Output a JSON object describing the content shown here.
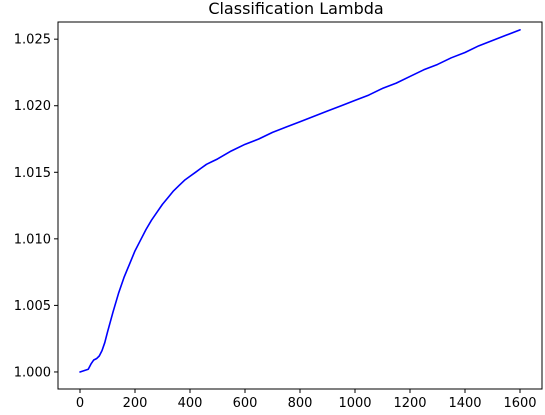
{
  "chart_data": {
    "type": "line",
    "title": "Classification Lambda",
    "xlabel": "",
    "ylabel": "",
    "xlim": [
      -80,
      1680
    ],
    "ylim": [
      0.99872,
      1.02629
    ],
    "xticks": [
      0,
      200,
      400,
      600,
      800,
      1000,
      1200,
      1400,
      1600
    ],
    "yticks": [
      1.0,
      1.005,
      1.01,
      1.015,
      1.02,
      1.025
    ],
    "xtick_labels": [
      "0",
      "200",
      "400",
      "600",
      "800",
      "1000",
      "1200",
      "1400",
      "1600"
    ],
    "ytick_labels": [
      "1.000",
      "1.005",
      "1.010",
      "1.015",
      "1.020",
      "1.025"
    ],
    "grid": false,
    "legend": null,
    "series": [
      {
        "color": "#0000ff",
        "x": [
          0,
          30,
          40,
          50,
          60,
          70,
          80,
          90,
          100,
          120,
          140,
          160,
          180,
          200,
          220,
          240,
          260,
          280,
          300,
          320,
          340,
          360,
          380,
          400,
          420,
          440,
          460,
          480,
          500,
          550,
          600,
          650,
          700,
          750,
          800,
          850,
          900,
          950,
          1000,
          1050,
          1100,
          1150,
          1200,
          1250,
          1300,
          1350,
          1400,
          1450,
          1500,
          1550,
          1600
        ],
        "y": [
          1.0,
          1.0002,
          1.0006,
          1.0009,
          1.001,
          1.0012,
          1.0016,
          1.0022,
          1.003,
          1.0045,
          1.0059,
          1.0071,
          1.0081,
          1.0091,
          1.0099,
          1.0107,
          1.0114,
          1.012,
          1.0126,
          1.0131,
          1.0136,
          1.014,
          1.0144,
          1.0147,
          1.015,
          1.0153,
          1.0156,
          1.0158,
          1.016,
          1.0166,
          1.0171,
          1.0175,
          1.018,
          1.0184,
          1.0188,
          1.0192,
          1.0196,
          1.02,
          1.0204,
          1.0208,
          1.0213,
          1.0217,
          1.0222,
          1.0227,
          1.0231,
          1.0236,
          1.024,
          1.0245,
          1.0249,
          1.0253,
          1.0257
        ]
      }
    ]
  }
}
